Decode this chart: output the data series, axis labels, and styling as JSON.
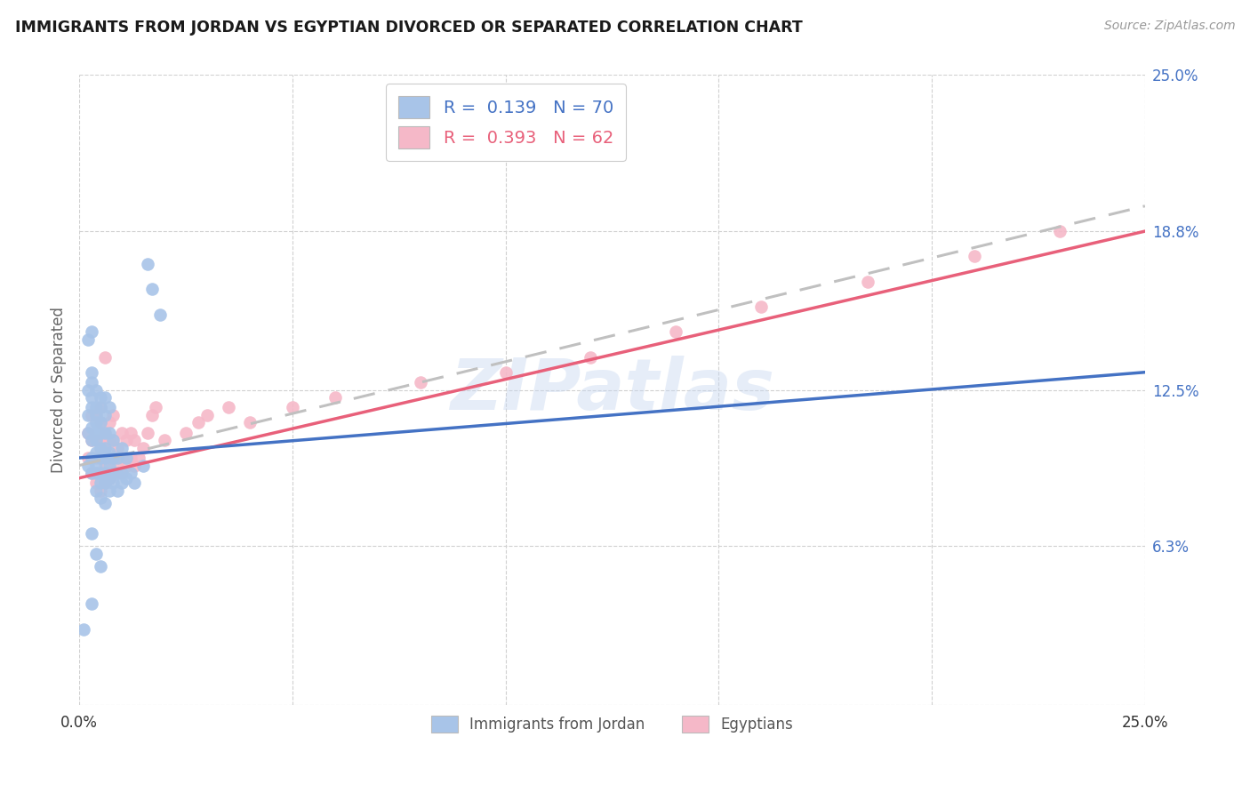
{
  "title": "IMMIGRANTS FROM JORDAN VS EGYPTIAN DIVORCED OR SEPARATED CORRELATION CHART",
  "source": "Source: ZipAtlas.com",
  "ylabel": "Divorced or Separated",
  "xlim": [
    0.0,
    0.25
  ],
  "ylim": [
    0.0,
    0.25
  ],
  "xtick_labels": [
    "0.0%",
    "25.0%"
  ],
  "ytick_labels_right": [
    "25.0%",
    "18.8%",
    "12.5%",
    "6.3%"
  ],
  "ytick_values_right": [
    0.25,
    0.188,
    0.125,
    0.063
  ],
  "legend_label_blue": "Immigrants from Jordan",
  "legend_label_pink": "Egyptians",
  "legend_r_blue": "0.139",
  "legend_n_blue": "70",
  "legend_r_pink": "0.393",
  "legend_n_pink": "62",
  "watermark": "ZIPatlas",
  "blue_color": "#a8c4e8",
  "pink_color": "#f5b8c8",
  "blue_line_color": "#4472c4",
  "pink_line_color": "#e8607a",
  "dashed_line_color": "#c0c0c0",
  "blue_scatter_x": [
    0.001,
    0.002,
    0.002,
    0.002,
    0.002,
    0.002,
    0.003,
    0.003,
    0.003,
    0.003,
    0.003,
    0.003,
    0.003,
    0.003,
    0.003,
    0.004,
    0.004,
    0.004,
    0.004,
    0.004,
    0.004,
    0.004,
    0.004,
    0.004,
    0.004,
    0.005,
    0.005,
    0.005,
    0.005,
    0.005,
    0.005,
    0.005,
    0.005,
    0.005,
    0.006,
    0.006,
    0.006,
    0.006,
    0.006,
    0.006,
    0.006,
    0.006,
    0.007,
    0.007,
    0.007,
    0.007,
    0.007,
    0.007,
    0.008,
    0.008,
    0.008,
    0.008,
    0.009,
    0.009,
    0.009,
    0.01,
    0.01,
    0.01,
    0.011,
    0.011,
    0.012,
    0.013,
    0.015,
    0.016,
    0.017,
    0.019,
    0.003,
    0.004,
    0.005,
    0.003
  ],
  "blue_scatter_y": [
    0.03,
    0.095,
    0.108,
    0.115,
    0.125,
    0.145,
    0.092,
    0.098,
    0.105,
    0.11,
    0.118,
    0.122,
    0.128,
    0.132,
    0.148,
    0.085,
    0.092,
    0.095,
    0.1,
    0.105,
    0.108,
    0.112,
    0.115,
    0.118,
    0.125,
    0.082,
    0.088,
    0.092,
    0.098,
    0.102,
    0.108,
    0.112,
    0.118,
    0.122,
    0.08,
    0.088,
    0.092,
    0.098,
    0.102,
    0.108,
    0.115,
    0.122,
    0.085,
    0.09,
    0.095,
    0.1,
    0.108,
    0.118,
    0.088,
    0.092,
    0.098,
    0.105,
    0.085,
    0.092,
    0.098,
    0.088,
    0.092,
    0.102,
    0.09,
    0.098,
    0.092,
    0.088,
    0.095,
    0.175,
    0.165,
    0.155,
    0.068,
    0.06,
    0.055,
    0.04
  ],
  "pink_scatter_x": [
    0.002,
    0.002,
    0.003,
    0.003,
    0.003,
    0.003,
    0.004,
    0.004,
    0.004,
    0.004,
    0.004,
    0.005,
    0.005,
    0.005,
    0.005,
    0.005,
    0.005,
    0.006,
    0.006,
    0.006,
    0.006,
    0.007,
    0.007,
    0.007,
    0.007,
    0.008,
    0.008,
    0.008,
    0.008,
    0.009,
    0.009,
    0.01,
    0.01,
    0.01,
    0.011,
    0.011,
    0.012,
    0.012,
    0.013,
    0.013,
    0.014,
    0.015,
    0.016,
    0.017,
    0.018,
    0.02,
    0.025,
    0.028,
    0.03,
    0.035,
    0.04,
    0.05,
    0.06,
    0.08,
    0.1,
    0.12,
    0.14,
    0.16,
    0.185,
    0.21,
    0.23,
    0.006
  ],
  "pink_scatter_y": [
    0.098,
    0.108,
    0.092,
    0.098,
    0.105,
    0.115,
    0.088,
    0.092,
    0.098,
    0.105,
    0.115,
    0.085,
    0.092,
    0.098,
    0.105,
    0.112,
    0.118,
    0.088,
    0.095,
    0.102,
    0.108,
    0.09,
    0.098,
    0.105,
    0.112,
    0.092,
    0.098,
    0.105,
    0.115,
    0.095,
    0.102,
    0.092,
    0.098,
    0.108,
    0.095,
    0.105,
    0.098,
    0.108,
    0.095,
    0.105,
    0.098,
    0.102,
    0.108,
    0.115,
    0.118,
    0.105,
    0.108,
    0.112,
    0.115,
    0.118,
    0.112,
    0.118,
    0.122,
    0.128,
    0.132,
    0.138,
    0.148,
    0.158,
    0.168,
    0.178,
    0.188,
    0.138
  ],
  "blue_line_x": [
    0.0,
    0.25
  ],
  "blue_line_y": [
    0.098,
    0.132
  ],
  "pink_line_x": [
    0.0,
    0.25
  ],
  "pink_line_y": [
    0.09,
    0.188
  ],
  "dash_line_x": [
    0.0,
    0.25
  ],
  "dash_line_y": [
    0.095,
    0.198
  ]
}
